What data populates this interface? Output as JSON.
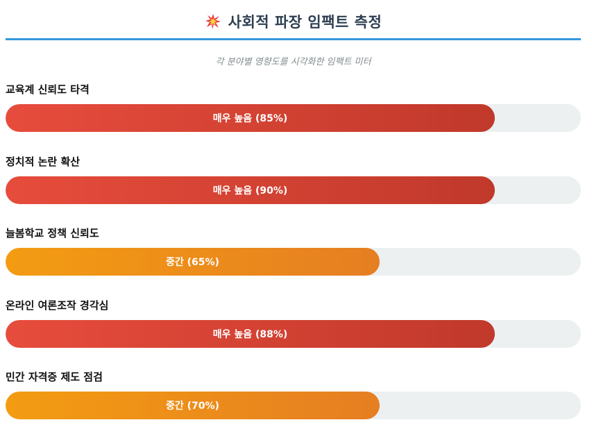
{
  "header": {
    "title": "사회적 파장 임팩트 측정",
    "icon": "collision-icon",
    "subtitle": "각 분야별 영향도를 시각화한 임팩트 미터"
  },
  "colors": {
    "accent_line": "#3498db",
    "high_start": "#e74c3c",
    "high_end": "#c0392b",
    "mid_start": "#f39c12",
    "mid_end": "#e67e22",
    "track": "#ecf0f1"
  },
  "chart_data": {
    "type": "bar",
    "orientation": "horizontal",
    "categories": [
      "교육계 신뢰도 타격",
      "정치적 논란 확산",
      "늘봄학교 정책 신뢰도",
      "온라인 여론조작 경각심",
      "민간 자격증 제도 점검"
    ],
    "values": [
      85,
      90,
      65,
      88,
      70
    ],
    "bar_labels": [
      "매우 높음 (85%)",
      "매우 높음 (90%)",
      "중간 (65%)",
      "매우 높음 (88%)",
      "중간 (70%)"
    ],
    "levels": [
      "high",
      "high",
      "mid",
      "high",
      "mid"
    ],
    "title": "사회적 파장 임팩트 측정",
    "subtitle": "각 분야별 영향도를 시각화한 임팩트 미터",
    "xlim": [
      0,
      100
    ],
    "grid": false
  },
  "metrics": [
    {
      "label": "교육계 신뢰도 타격",
      "bar_text": "매우 높음 (85%)"
    },
    {
      "label": "정치적 논란 확산",
      "bar_text": "매우 높음 (90%)"
    },
    {
      "label": "늘봄학교 정책 신뢰도",
      "bar_text": "중간 (65%)"
    },
    {
      "label": "온라인 여론조작 경각심",
      "bar_text": "매우 높음 (88%)"
    },
    {
      "label": "민간 자격증 제도 점검",
      "bar_text": "중간 (70%)"
    }
  ]
}
